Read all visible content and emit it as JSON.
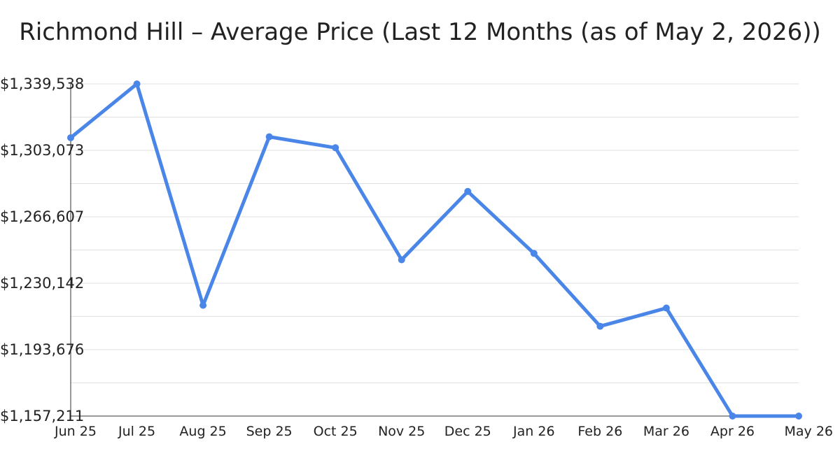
{
  "chart_data": {
    "type": "line",
    "title": "Richmond Hill – Average Price (Last 12 Months (as of May 2, 2026))",
    "xlabel": "",
    "ylabel": "",
    "categories": [
      "Jun 25",
      "Jul 25",
      "Aug 25",
      "Sep 25",
      "Oct 25",
      "Nov 25",
      "Dec 25",
      "Jan 26",
      "Feb 26",
      "Mar 26",
      "Apr 26",
      "May 26"
    ],
    "series": [
      {
        "values": [
          1310000,
          1339538,
          1218000,
          1310500,
          1304500,
          1243000,
          1280500,
          1246500,
          1206500,
          1216500,
          1157211,
          1157211
        ]
      }
    ],
    "ylim": [
      1157211,
      1339538
    ],
    "y_ticks": [
      "$1,157,211",
      "$1,193,676",
      "$1,230,142",
      "$1,266,607",
      "$1,303,073",
      "$1,339,538"
    ],
    "y_tick_values": [
      1157211,
      1193676,
      1230142,
      1266607,
      1303073,
      1339538
    ],
    "grid": true,
    "line_color": "#4a86e8",
    "grid_color": "#e0e0e0",
    "axis_color": "#333333"
  }
}
